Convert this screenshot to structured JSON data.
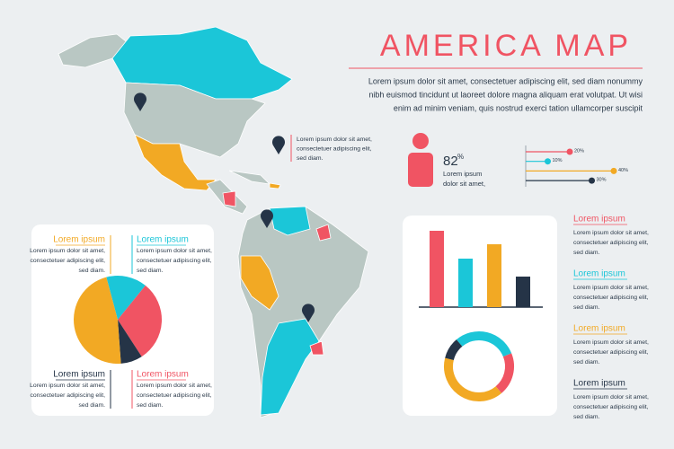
{
  "title": "AMERICA MAP",
  "intro": [
    "Lorem ipsum dolor sit amet, consectetuer adipiscing elit, sed diam nonummy",
    "nibh euismod tincidunt ut laoreet dolore magna aliquam erat volutpat. Ut wisi",
    "enim ad minim veniam, quis nostrud exerci tation ullamcorper suscipit"
  ],
  "map_note": [
    "Lorem ipsum dolor sit amet,",
    "consectetuer adipiscing elit,",
    "sed diam."
  ],
  "stat": {
    "value": 82,
    "unit": "%",
    "text": [
      "Lorem ipsum",
      "dolor sit amet,"
    ]
  },
  "chart_data": [
    {
      "type": "lollipop",
      "values": [
        20,
        10,
        40,
        30
      ],
      "value_labels": [
        "20%",
        "10%",
        "40%",
        "30%"
      ],
      "colors": [
        "#f05463",
        "#1bc6d8",
        "#f2a924",
        "#253447"
      ],
      "xlim": [
        0,
        40
      ]
    },
    {
      "type": "bar",
      "values": [
        85,
        54,
        70,
        34
      ],
      "colors": [
        "#f05463",
        "#1bc6d8",
        "#f2a924",
        "#253447"
      ],
      "ylim": [
        0,
        100
      ]
    },
    {
      "type": "pie",
      "values": [
        15,
        30,
        8,
        47
      ],
      "colors": [
        "#1bc6d8",
        "#f05463",
        "#253447",
        "#f2a924"
      ]
    },
    {
      "type": "donut",
      "values": [
        30,
        20,
        40,
        10
      ],
      "colors": [
        "#1bc6d8",
        "#f05463",
        "#f2a924",
        "#253447"
      ]
    }
  ],
  "pie_notes": [
    {
      "title": "Lorem ipsum",
      "color": "#f2a924",
      "lines": [
        "Lorem ipsum dolor sit amet,",
        "consectetuer adipiscing elit,",
        "sed diam."
      ]
    },
    {
      "title": "Lorem ipsum",
      "color": "#1bc6d8",
      "lines": [
        "Lorem ipsum dolor sit amet,",
        "consectetuer adipiscing elit,",
        "sed diam."
      ]
    },
    {
      "title": "Lorem ipsum",
      "color": "#253447",
      "lines": [
        "Lorem ipsum dolor sit amet,",
        "consectetuer adipiscing elit,",
        "sed diam."
      ]
    },
    {
      "title": "Lorem ipsum",
      "color": "#f05463",
      "lines": [
        "Lorem ipsum dolor sit amet,",
        "consectetuer adipiscing elit,",
        "sed diam."
      ]
    }
  ],
  "legend_notes": [
    {
      "title": "Lorem ipsum",
      "color": "#f05463",
      "lines": [
        "Lorem ipsum dolor sit amet,",
        "consectetuer adipiscing elit,",
        "sed diam."
      ]
    },
    {
      "title": "Lorem ipsum",
      "color": "#1bc6d8",
      "lines": [
        "Lorem ipsum dolor sit amet,",
        "consectetuer adipiscing elit,",
        "sed diam."
      ]
    },
    {
      "title": "Lorem ipsum",
      "color": "#f2a924",
      "lines": [
        "Lorem ipsum dolor sit amet,",
        "consectetuer adipiscing elit,",
        "sed diam."
      ]
    },
    {
      "title": "Lorem ipsum",
      "color": "#253447",
      "lines": [
        "Lorem ipsum dolor sit amet,",
        "consectetuer adipiscing elit,",
        "sed diam."
      ]
    }
  ]
}
